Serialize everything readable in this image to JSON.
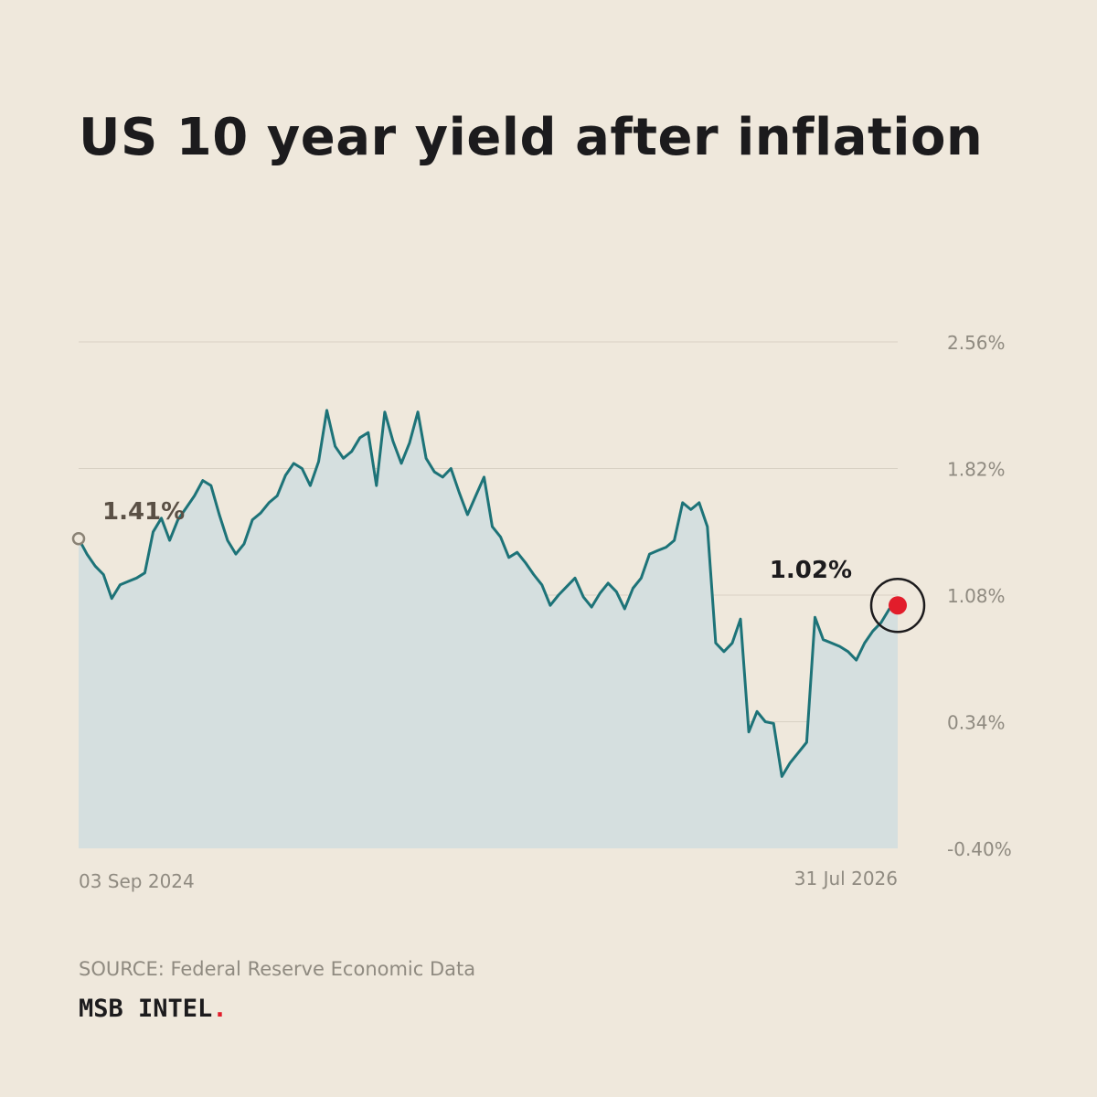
{
  "title": "US 10 year yield after inflation",
  "source": "SOURCE: Federal Reserve Economic Data",
  "brand": {
    "name": "MSB INTEL",
    "dot": "."
  },
  "colors": {
    "background": "#efe8dc",
    "line": "#1d7378",
    "area": "#d5dfdf",
    "grid": "#d8d1c4",
    "axis_text": "#8f8a80",
    "start_label": "#5a5045",
    "end_marker": "#e21d2b"
  },
  "chart_data": {
    "type": "area",
    "title": "US 10 year yield after inflation",
    "xlabel": "",
    "ylabel": "",
    "unit": "%",
    "x_start": "03 Sep 2024",
    "x_end": "31 Jul 2026",
    "x_tick_labels": [
      "03 Sep 2024",
      "31 Jul 2026"
    ],
    "y_ticks": [
      2.56,
      1.82,
      1.08,
      0.34,
      -0.4
    ],
    "y_tick_labels": [
      "2.56%",
      "1.82%",
      "1.08%",
      "0.34%",
      "-0.40%"
    ],
    "ylim": [
      -0.4,
      2.56
    ],
    "grid": true,
    "legend": "none",
    "start_label": "1.41%",
    "end_label": "1.02%",
    "series": [
      {
        "values": [
          1.41,
          1.32,
          1.25,
          1.2,
          1.06,
          1.14,
          1.16,
          1.18,
          1.21,
          1.45,
          1.53,
          1.4,
          1.52,
          1.59,
          1.66,
          1.75,
          1.72,
          1.55,
          1.4,
          1.32,
          1.38,
          1.52,
          1.56,
          1.62,
          1.66,
          1.78,
          1.85,
          1.82,
          1.72,
          1.86,
          2.16,
          1.95,
          1.88,
          1.92,
          2.0,
          2.03,
          1.72,
          2.15,
          1.98,
          1.85,
          1.97,
          2.15,
          1.88,
          1.8,
          1.77,
          1.82,
          1.68,
          1.55,
          1.66,
          1.77,
          1.48,
          1.42,
          1.3,
          1.33,
          1.27,
          1.2,
          1.14,
          1.02,
          1.08,
          1.13,
          1.18,
          1.07,
          1.01,
          1.09,
          1.15,
          1.1,
          1.0,
          1.12,
          1.18,
          1.32,
          1.34,
          1.36,
          1.4,
          1.62,
          1.58,
          1.62,
          1.48,
          0.8,
          0.75,
          0.8,
          0.94,
          0.28,
          0.4,
          0.34,
          0.33,
          0.02,
          0.1,
          0.16,
          0.22,
          0.95,
          0.82,
          0.8,
          0.78,
          0.75,
          0.7,
          0.8,
          0.87,
          0.92,
          1.0,
          1.02
        ]
      }
    ]
  }
}
